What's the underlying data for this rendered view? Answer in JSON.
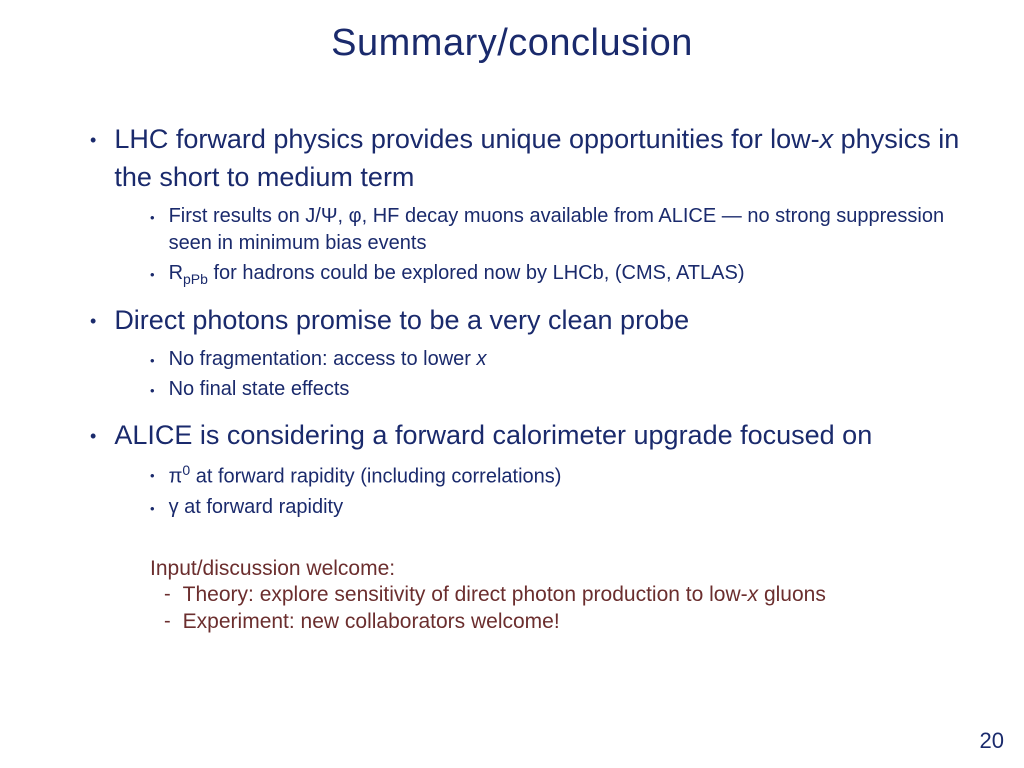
{
  "title": "Summary/conclusion",
  "b1": {
    "pre": "LHC forward physics provides unique opportunities for low-",
    "x": "x",
    "post": " physics in the short to medium term"
  },
  "b1s1": "First results on J/Ψ, φ, HF decay muons available from ALICE — no strong suppression seen in minimum bias events",
  "b1s2": {
    "pre": "R",
    "sub": "pPb",
    "post": " for hadrons could be explored now by LHCb, (CMS, ATLAS)"
  },
  "b2": "Direct photons promise to be a very clean probe",
  "b2s1": {
    "pre": "No fragmentation: access to lower ",
    "x": "x"
  },
  "b2s2": "No final state effects",
  "b3": "ALICE is considering a forward calorimeter upgrade focused on",
  "b3s1": {
    "sym": "π",
    "sup": "0",
    "post": " at forward rapidity (including correlations)"
  },
  "b3s2": {
    "sym": "γ",
    "post": " at forward rapidity"
  },
  "footer": {
    "intro": "Input/discussion welcome:",
    "i1": {
      "pre": "Theory: explore sensitivity of direct photon production to low-",
      "x": "x",
      "post": " gluons"
    },
    "i2": "Experiment: new collaborators welcome!"
  },
  "pageNumber": "20",
  "colors": {
    "primary": "#1a2a6c",
    "footer": "#6b2e2e",
    "bg": "#ffffff"
  }
}
